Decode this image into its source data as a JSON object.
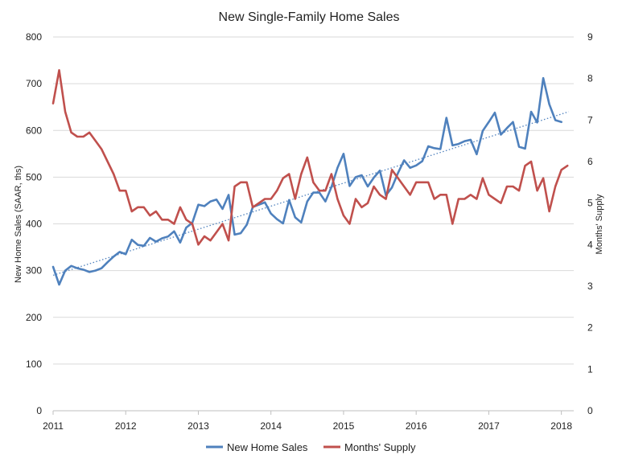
{
  "chart_data": {
    "type": "line",
    "title": "New Single-Family Home Sales",
    "ylabel_left": "New Home Sales (SAAR, ths)",
    "ylabel_right": "Months' Supply",
    "xlim": [
      2011,
      2018.17
    ],
    "ylim_left": [
      0,
      800
    ],
    "ylim_right": [
      0,
      9
    ],
    "x_ticks": [
      "2011",
      "2012",
      "2013",
      "2014",
      "2015",
      "2016",
      "2017",
      "2018"
    ],
    "y_ticks_left": [
      "0",
      "100",
      "200",
      "300",
      "400",
      "500",
      "600",
      "700",
      "800"
    ],
    "y_ticks_right": [
      "0",
      "1",
      "2",
      "3",
      "4",
      "5",
      "6",
      "7",
      "8",
      "9"
    ],
    "grid": true,
    "legend_position": "bottom",
    "colors": {
      "sales": "#4f81bd",
      "supply": "#c0504d",
      "trend": "#4f81bd",
      "grid": "#d9d9d9"
    },
    "series": [
      {
        "name": "New Home Sales",
        "axis": "left",
        "start": 2011,
        "step_months": 1,
        "values": [
          308,
          270,
          300,
          310,
          305,
          302,
          297,
          300,
          305,
          318,
          330,
          340,
          335,
          366,
          355,
          353,
          370,
          362,
          369,
          373,
          384,
          360,
          392,
          402,
          441,
          438,
          448,
          452,
          432,
          462,
          377,
          380,
          398,
          436,
          441,
          446,
          422,
          410,
          401,
          451,
          414,
          403,
          448,
          467,
          467,
          448,
          479,
          520,
          550,
          481,
          500,
          504,
          480,
          499,
          514,
          461,
          478,
          509,
          536,
          520,
          525,
          534,
          566,
          562,
          560,
          627,
          568,
          571,
          577,
          580,
          549,
          599,
          618,
          638,
          591,
          605,
          618,
          565,
          561,
          640,
          617,
          712,
          656,
          622,
          618
        ]
      },
      {
        "name": "Months' Supply",
        "axis": "right",
        "start": 2011,
        "step_months": 1,
        "values": [
          7.4,
          8.2,
          7.2,
          6.7,
          6.6,
          6.6,
          6.7,
          6.5,
          6.3,
          6.0,
          5.7,
          5.3,
          5.3,
          4.8,
          4.9,
          4.9,
          4.7,
          4.8,
          4.6,
          4.6,
          4.5,
          4.9,
          4.6,
          4.5,
          4.0,
          4.2,
          4.1,
          4.3,
          4.5,
          4.1,
          5.4,
          5.5,
          5.5,
          4.9,
          5.0,
          5.1,
          5.1,
          5.3,
          5.6,
          5.7,
          5.1,
          5.7,
          6.1,
          5.5,
          5.3,
          5.3,
          5.7,
          5.1,
          4.7,
          4.5,
          5.1,
          4.9,
          5.0,
          5.4,
          5.2,
          5.1,
          5.8,
          5.6,
          5.4,
          5.2,
          5.5,
          5.5,
          5.5,
          5.1,
          5.2,
          5.2,
          4.5,
          5.1,
          5.1,
          5.2,
          5.1,
          5.6,
          5.2,
          5.1,
          5.0,
          5.4,
          5.4,
          5.3,
          5.9,
          6.0,
          5.3,
          5.6,
          4.8,
          5.4,
          5.8,
          5.9
        ]
      }
    ],
    "trendline": {
      "series": "New Home Sales",
      "style": "dotted",
      "from": [
        2011,
        290
      ],
      "to": [
        2018.1,
        640
      ]
    }
  }
}
